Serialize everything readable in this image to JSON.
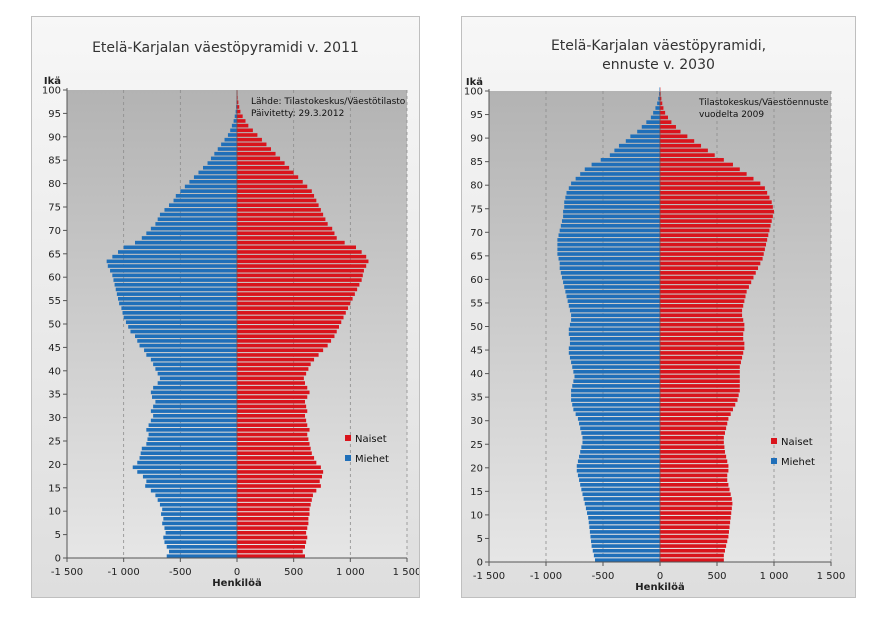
{
  "chart_data": [
    {
      "type": "bar",
      "title": "Etelä-Karjalan väestöpyramidi  v. 2011",
      "ylabel": "Ikä",
      "xlabel": "Henkilöä",
      "xlim": [
        -1500,
        1500
      ],
      "ylim": [
        0,
        100
      ],
      "x_ticks": [
        "-1 500",
        "-1 000",
        "-500",
        "0",
        "500",
        "1 000",
        "1 500"
      ],
      "y_ticks": [
        "0",
        "5",
        "10",
        "15",
        "20",
        "25",
        "30",
        "35",
        "40",
        "45",
        "50",
        "55",
        "60",
        "65",
        "70",
        "75",
        "80",
        "85",
        "90",
        "95",
        "100"
      ],
      "source_note": [
        "Lähde: Tilastokeskus/Väestötilasto",
        "Päivitetty: 29.3.2012"
      ],
      "legend": {
        "position": "right",
        "entries": [
          "Naiset",
          "Miehet"
        ]
      },
      "colors": {
        "Naiset": "#d9141c",
        "Miehet": "#1f6fb9"
      },
      "series": [
        {
          "name": "Miehet",
          "values": [
            -620,
            -600,
            -620,
            -640,
            -650,
            -630,
            -640,
            -660,
            -650,
            -670,
            -660,
            -680,
            -700,
            -720,
            -760,
            -810,
            -800,
            -830,
            -880,
            -920,
            -880,
            -860,
            -850,
            -840,
            -800,
            -790,
            -780,
            -800,
            -780,
            -760,
            -740,
            -760,
            -740,
            -720,
            -750,
            -760,
            -740,
            -700,
            -680,
            -700,
            -720,
            -740,
            -760,
            -800,
            -820,
            -860,
            -880,
            -900,
            -940,
            -960,
            -980,
            -1000,
            -1010,
            -1020,
            -1040,
            -1050,
            -1060,
            -1070,
            -1080,
            -1090,
            -1100,
            -1120,
            -1140,
            -1150,
            -1100,
            -1050,
            -1000,
            -900,
            -840,
            -800,
            -760,
            -720,
            -700,
            -680,
            -640,
            -600,
            -560,
            -540,
            -500,
            -460,
            -420,
            -380,
            -340,
            -300,
            -260,
            -230,
            -200,
            -170,
            -140,
            -110,
            -80,
            -60,
            -45,
            -30,
            -20,
            -12,
            -8,
            -5,
            -3,
            -2
          ]
        },
        {
          "name": "Naiset",
          "values": [
            600,
            580,
            600,
            610,
            620,
            610,
            620,
            630,
            630,
            640,
            640,
            650,
            660,
            670,
            700,
            740,
            730,
            750,
            760,
            740,
            700,
            680,
            660,
            650,
            640,
            630,
            620,
            640,
            620,
            610,
            600,
            620,
            610,
            600,
            620,
            640,
            620,
            600,
            590,
            610,
            630,
            650,
            680,
            720,
            760,
            800,
            830,
            860,
            880,
            900,
            920,
            940,
            960,
            980,
            1000,
            1020,
            1040,
            1060,
            1080,
            1100,
            1110,
            1120,
            1140,
            1160,
            1140,
            1100,
            1050,
            950,
            880,
            860,
            840,
            800,
            780,
            760,
            740,
            720,
            700,
            680,
            660,
            620,
            580,
            540,
            500,
            460,
            420,
            380,
            340,
            300,
            260,
            220,
            180,
            140,
            100,
            75,
            50,
            30,
            20,
            12,
            6,
            3
          ]
        }
      ]
    },
    {
      "type": "bar",
      "title": "Etelä-Karjalan väestöpyramidi,\nennuste  v. 2030",
      "ylabel": "Ikä",
      "xlabel": "Henkilöä",
      "xlim": [
        -1500,
        1500
      ],
      "ylim": [
        0,
        100
      ],
      "x_ticks": [
        "-1 500",
        "-1 000",
        "-500",
        "0",
        "500",
        "1 000",
        "1 500"
      ],
      "y_ticks": [
        "0",
        "5",
        "10",
        "15",
        "20",
        "25",
        "30",
        "35",
        "40",
        "45",
        "50",
        "55",
        "60",
        "65",
        "70",
        "75",
        "80",
        "85",
        "90",
        "95",
        "100"
      ],
      "source_note": [
        "Tilastokeskus/Väestöennuste",
        "vuodelta 2009"
      ],
      "legend": {
        "position": "right",
        "entries": [
          "Naiset",
          "Miehet"
        ]
      },
      "colors": {
        "Naiset": "#d9141c",
        "Miehet": "#1f6fb9"
      },
      "series": [
        {
          "name": "Miehet",
          "values": [
            -570,
            -580,
            -590,
            -600,
            -605,
            -610,
            -615,
            -620,
            -625,
            -630,
            -640,
            -650,
            -660,
            -670,
            -680,
            -690,
            -700,
            -710,
            -720,
            -730,
            -730,
            -720,
            -710,
            -700,
            -690,
            -680,
            -680,
            -690,
            -700,
            -710,
            -720,
            -740,
            -760,
            -770,
            -780,
            -780,
            -780,
            -770,
            -760,
            -750,
            -760,
            -770,
            -780,
            -790,
            -800,
            -800,
            -790,
            -790,
            -800,
            -800,
            -790,
            -780,
            -780,
            -790,
            -800,
            -810,
            -820,
            -830,
            -840,
            -850,
            -860,
            -870,
            -880,
            -880,
            -890,
            -900,
            -900,
            -900,
            -900,
            -890,
            -880,
            -870,
            -860,
            -850,
            -850,
            -840,
            -840,
            -830,
            -820,
            -800,
            -780,
            -740,
            -700,
            -660,
            -600,
            -520,
            -440,
            -400,
            -360,
            -300,
            -260,
            -200,
            -160,
            -120,
            -80,
            -60,
            -40,
            -25,
            -15,
            -8,
            -4
          ]
        },
        {
          "name": "Naiset",
          "values": [
            560,
            560,
            570,
            580,
            590,
            600,
            605,
            610,
            615,
            620,
            625,
            630,
            635,
            630,
            620,
            610,
            600,
            590,
            590,
            600,
            600,
            590,
            580,
            570,
            565,
            560,
            560,
            570,
            580,
            590,
            600,
            620,
            640,
            660,
            680,
            690,
            700,
            700,
            700,
            700,
            700,
            700,
            710,
            720,
            730,
            740,
            740,
            730,
            730,
            740,
            740,
            730,
            720,
            720,
            730,
            740,
            750,
            760,
            780,
            800,
            820,
            840,
            860,
            880,
            900,
            910,
            920,
            930,
            940,
            950,
            960,
            970,
            980,
            990,
            1000,
            990,
            980,
            960,
            940,
            920,
            880,
            820,
            760,
            700,
            640,
            560,
            480,
            420,
            360,
            300,
            240,
            180,
            140,
            100,
            70,
            45,
            30,
            20,
            12,
            6,
            3
          ]
        }
      ]
    }
  ]
}
